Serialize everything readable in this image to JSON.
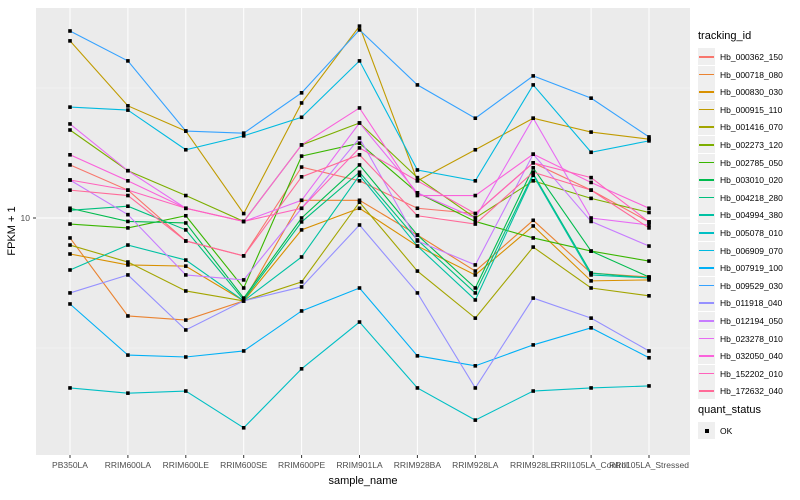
{
  "chart_data": {
    "type": "line",
    "title": "",
    "xlabel": "sample_name",
    "ylabel": "FPKM + 1",
    "y_scale": "log10",
    "y_ticks": [
      {
        "label": "10",
        "value": 10
      }
    ],
    "grid": "on",
    "panel_bg": "#EBEBEB",
    "grid_color": "#FFFFFF",
    "marker": {
      "shape": "square",
      "color": "#000000",
      "size": 3.6
    },
    "legend_position": "right",
    "legend_title": "tracking_id",
    "legend2_title": "quant_status",
    "legend2_items": [
      {
        "label": "OK",
        "marker": "black-square"
      }
    ],
    "categories": [
      "PB350LA",
      "RRIM600LA",
      "RRIM600LE",
      "RRIM600SE",
      "RRIM600PE",
      "RRIM901LA",
      "RRIM928BA",
      "RRIM928LA",
      "RRIM928LE",
      "RRII105LA_Control",
      "RRII105LA_Stressed"
    ],
    "series": [
      {
        "name": "Hb_000362_150",
        "color": "#F8766D",
        "values": [
          16.0,
          12.8,
          8.16,
          7.15,
          15.7,
          13.9,
          10.9,
          10.4,
          16.3,
          12.8,
          9.66
        ]
      },
      {
        "name": "Hb_000718_080",
        "color": "#EA8331",
        "values": [
          8.38,
          4.2,
          4.05,
          4.8,
          11.7,
          11.7,
          8.6,
          6.25,
          9.8,
          6.14,
          5.93
        ]
      },
      {
        "name": "Hb_000830_030",
        "color": "#D89000",
        "values": [
          7.27,
          6.6,
          6.53,
          4.8,
          9.0,
          10.9,
          7.8,
          6.04,
          9.32,
          5.73,
          5.78
        ]
      },
      {
        "name": "Hb_000915_110",
        "color": "#C09B00",
        "values": [
          48.0,
          27.0,
          21.6,
          10.4,
          27.7,
          54.7,
          13.9,
          18.3,
          24.2,
          21.4,
          20.1
        ]
      },
      {
        "name": "Hb_001416_070",
        "color": "#A3A500",
        "values": [
          7.87,
          6.77,
          5.24,
          4.8,
          5.68,
          11.5,
          6.25,
          4.12,
          7.73,
          5.38,
          5.02
        ]
      },
      {
        "name": "Hb_002273_120",
        "color": "#7CAE00",
        "values": [
          21.8,
          15.2,
          12.2,
          9.7,
          19.1,
          23.2,
          14.3,
          10.0,
          13.9,
          11.9,
          10.5
        ]
      },
      {
        "name": "Hb_002785_050",
        "color": "#39B600",
        "values": [
          9.48,
          9.16,
          10.2,
          5.38,
          17.3,
          19.4,
          12.5,
          9.7,
          8.38,
          7.46,
          6.83
        ]
      },
      {
        "name": "Hb_003010_020",
        "color": "#00BB4E",
        "values": [
          10.9,
          9.7,
          9.57,
          4.92,
          10.0,
          16.0,
          8.6,
          5.38,
          15.6,
          7.46,
          5.93
        ]
      },
      {
        "name": "Hb_004218_280",
        "color": "#00BF7D",
        "values": [
          10.7,
          11.1,
          9.0,
          4.84,
          9.66,
          15.0,
          8.23,
          5.15,
          14.8,
          6.14,
          5.88
        ]
      },
      {
        "name": "Hb_004994_380",
        "color": "#00C1A3",
        "values": [
          6.31,
          7.87,
          6.89,
          4.8,
          7.08,
          14.6,
          7.8,
          4.84,
          14.6,
          6.04,
          5.88
        ]
      },
      {
        "name": "Hb_005078_010",
        "color": "#00BFC4",
        "values": [
          2.22,
          2.12,
          2.16,
          1.56,
          2.63,
          3.98,
          2.22,
          1.67,
          2.16,
          2.22,
          2.26
        ]
      },
      {
        "name": "Hb_006909_070",
        "color": "#00BAE0",
        "values": [
          26.7,
          26.0,
          18.3,
          20.7,
          24.4,
          40.2,
          15.3,
          13.9,
          32.5,
          17.9,
          19.8
        ]
      },
      {
        "name": "Hb_007919_100",
        "color": "#00B0F6",
        "values": [
          4.67,
          2.97,
          2.92,
          3.08,
          4.39,
          5.38,
          2.95,
          2.7,
          3.25,
          3.78,
          2.9
        ]
      },
      {
        "name": "Hb_009529_030",
        "color": "#35A2FF",
        "values": [
          52.4,
          40.2,
          21.6,
          21.2,
          30.3,
          52.9,
          32.5,
          24.2,
          35.2,
          28.9,
          20.5
        ]
      },
      {
        "name": "Hb_011918_040",
        "color": "#9590FF",
        "values": [
          5.15,
          6.04,
          3.71,
          4.8,
          5.43,
          9.4,
          5.15,
          2.22,
          4.92,
          4.12,
          3.08
        ]
      },
      {
        "name": "Hb_012194_050",
        "color": "#C77CFF",
        "values": [
          14.0,
          10.3,
          6.04,
          5.78,
          10.9,
          20.3,
          8.16,
          6.6,
          17.6,
          9.7,
          7.8
        ]
      },
      {
        "name": "Hb_023278_010",
        "color": "#E76BF3",
        "values": [
          23.0,
          15.2,
          10.9,
          9.7,
          11.7,
          23.2,
          12.5,
          10.0,
          24.2,
          10.0,
          9.4
        ]
      },
      {
        "name": "Hb_032050_040",
        "color": "#FA62DB",
        "values": [
          17.5,
          13.9,
          10.9,
          9.7,
          19.1,
          26.5,
          12.2,
          12.2,
          17.6,
          13.7,
          10.9
        ]
      },
      {
        "name": "Hb_152202_010",
        "color": "#FF62BC",
        "values": [
          14.0,
          12.8,
          10.9,
          9.7,
          10.9,
          18.6,
          13.9,
          10.4,
          16.3,
          14.3,
          9.66
        ]
      },
      {
        "name": "Hb_172632_040",
        "color": "#FF6A98",
        "values": [
          12.8,
          12.2,
          8.16,
          7.15,
          14.4,
          17.5,
          10.2,
          9.48,
          15.0,
          12.8,
          9.16
        ]
      }
    ]
  }
}
